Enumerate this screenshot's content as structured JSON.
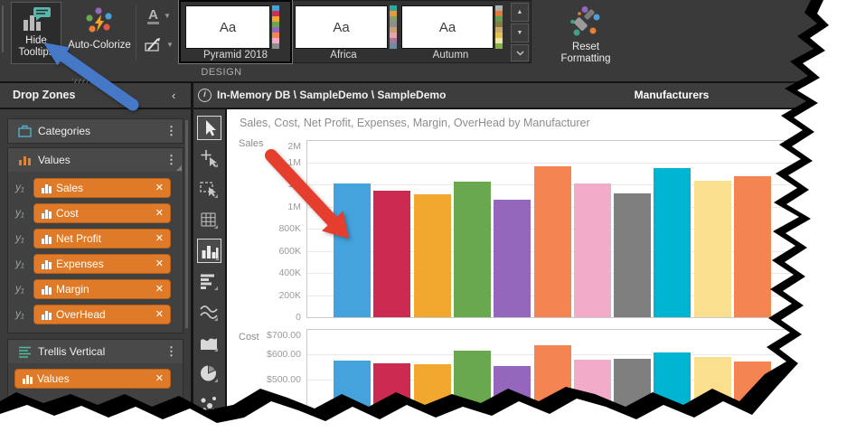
{
  "ribbon": {
    "hide_tooltips": {
      "label_line1": "Hide",
      "label_line2": "Tooltips"
    },
    "auto_colorize_label": "Auto-Colorize",
    "font_color_label": "A",
    "group_label": "DESIGN",
    "themes": [
      {
        "name": "Pyramid 2018",
        "preview": "Aa",
        "selected": true,
        "palette": [
          "#44a2dc",
          "#d12e53",
          "#f2a72e",
          "#6aa84f",
          "#9467bd",
          "#f58453",
          "#f2abc9",
          "#8c8c8c"
        ]
      },
      {
        "name": "Africa",
        "preview": "Aa",
        "selected": false,
        "palette": [
          "#2fa8a0",
          "#e59a3c",
          "#8a9b6e",
          "#8d8d8d",
          "#c9a178",
          "#e7a4ad",
          "#a9799f",
          "#6b8e9f"
        ]
      },
      {
        "name": "Autumn",
        "preview": "Aa",
        "selected": false,
        "palette": [
          "#b0b0b0",
          "#e07b35",
          "#5f9e53",
          "#8a7a45",
          "#c9aa6e",
          "#e3c34f",
          "#efe2a6",
          "#86b04a"
        ]
      }
    ],
    "scroll_up_icon": "▲",
    "scroll_down_icon": "▼",
    "reset_formatting": {
      "label_line1": "Reset",
      "label_line2": "Formatting"
    }
  },
  "content_header": {
    "info_icon": "i",
    "path": "In-Memory DB \\ SampleDemo \\ SampleDemo",
    "column_header": "Manufacturers"
  },
  "drop_zones": {
    "title": "Drop Zones",
    "collapse_icon": "‹",
    "menu_icon": "⋮",
    "chip_remove_icon": "✕",
    "chip_color": "#df7b28",
    "sections": [
      {
        "label": "Categories",
        "icon": "briefcase-icon",
        "chips": []
      },
      {
        "label": "Values",
        "icon": "column-chart-icon",
        "chip_prefix": "y₁",
        "chips": [
          "Sales",
          "Cost",
          "Net Profit",
          "Expenses",
          "Margin",
          "OverHead"
        ]
      },
      {
        "label": "Trellis Vertical",
        "icon": "trellis-icon",
        "chips": [
          "Values"
        ]
      }
    ]
  },
  "chart_toolbar": {
    "items": [
      {
        "name": "select-cursor-icon",
        "selected": true
      },
      {
        "name": "move-cursor-icon",
        "selected": false
      },
      {
        "name": "marquee-select-icon",
        "selected": false
      },
      {
        "name": "grid-icon",
        "selected": false
      },
      {
        "name": "column-chart-icon",
        "selected": true
      },
      {
        "name": "bar-chart-icon",
        "selected": false
      },
      {
        "name": "line-chart-icon",
        "selected": false
      },
      {
        "name": "area-chart-icon",
        "selected": false
      },
      {
        "name": "pie-chart-icon",
        "selected": false
      },
      {
        "name": "scatter-chart-icon",
        "selected": false
      }
    ]
  },
  "chart_data": {
    "type": "bar",
    "title": "Sales, Cost, Net Profit, Expenses, Margin, OverHead by Manufacturer",
    "trellis": "vertical panels, one per measure; x axis = Manufacturer (11 bars, category labels not visible in crop)",
    "grid": true,
    "bar_colors": [
      "#44a2dc",
      "#cc2a50",
      "#f2a72e",
      "#6aa84f",
      "#9467bd",
      "#f58453",
      "#f2abc9",
      "#7f7f7f",
      "#00b5d1",
      "#fadf8e",
      "#f58453"
    ],
    "panels": [
      {
        "measure": "Sales",
        "tick_labels_bottom_to_top": [
          "0",
          "200K",
          "400K",
          "600K",
          "800K",
          "1M",
          "1M",
          "1M",
          "2M"
        ],
        "tick_interval": 200000,
        "ylim": [
          0,
          1600000
        ],
        "values_approx": [
          1210000,
          1140000,
          1110000,
          1225000,
          1065000,
          1365000,
          1210000,
          1120000,
          1350000,
          1235000,
          1275000
        ]
      },
      {
        "measure": "Cost",
        "tick_labels_top_to_bottom": [
          "$700.00",
          "$600.00",
          "$500.00"
        ],
        "tick_values": [
          700,
          600,
          500
        ],
        "ylim_visible_top": 700,
        "values_approx": [
          575,
          564,
          559,
          616,
          552,
          634,
          577,
          582,
          607,
          589,
          573
        ],
        "note": "panel cut off by torn edge of screenshot"
      }
    ]
  },
  "annotations": {
    "red_arrow_target": "first Sales bar in chart",
    "red_arrow_color": "#e63e2e",
    "blue_arrow_target": "Hide Tooltips button",
    "blue_arrow_color": "#4678c8"
  }
}
